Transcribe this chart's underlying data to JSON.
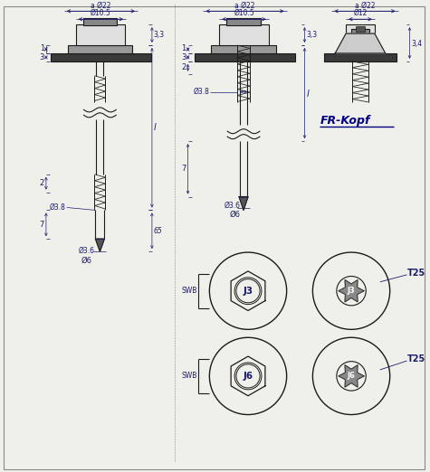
{
  "bg_color": "#f0f0eb",
  "line_color": "#1a1a1a",
  "dim_color": "#1a1a6e",
  "title": "FR-Kopf",
  "dim_phi22": "Ø22",
  "dim_phi105": "Ø10.5",
  "dim_phi12": "Ø12",
  "dim_phi38": "Ø3.8",
  "dim_phi36": "Ø3.6",
  "dim_phi6": "Ø6",
  "label_1": "1",
  "label_3": "3",
  "label_2": "2",
  "label_7": "7",
  "label_l": "l",
  "label_65": "65",
  "label_J3": "J3",
  "label_J6": "J6",
  "label_SWB": "SWB",
  "label_T25": "T25",
  "label_33": "3,3",
  "label_34": "3,4"
}
